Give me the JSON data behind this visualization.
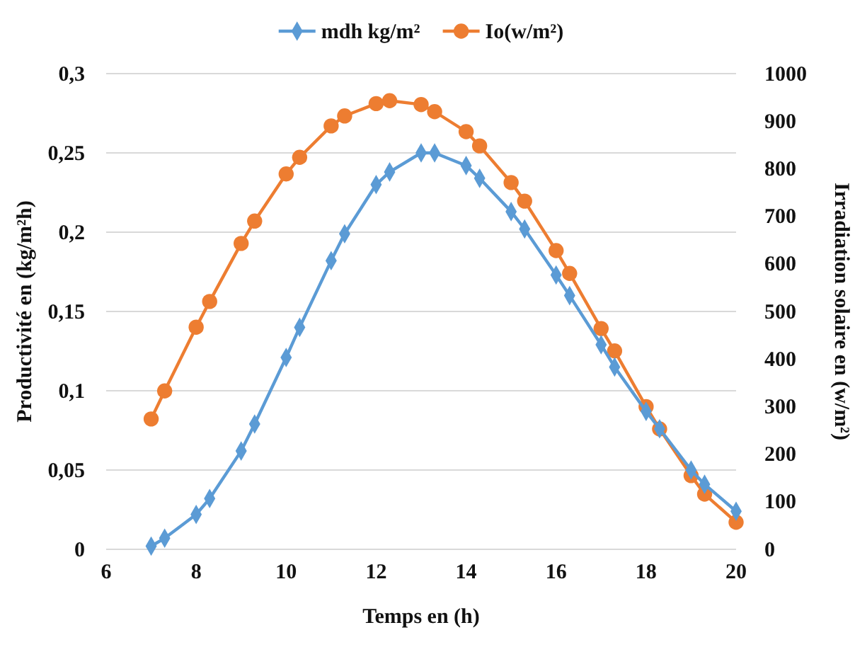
{
  "chart_data": {
    "type": "line",
    "xlabel": "Temps en (h)",
    "ylabel": "Productivité en (kg/m²h)",
    "y2label": "Irradiation solaire en (w/m²)",
    "x": [
      7,
      7.3,
      8,
      8.3,
      9,
      9.3,
      10,
      10.3,
      11,
      11.3,
      12,
      12.3,
      13,
      13.3,
      14,
      14.3,
      15,
      15.3,
      16,
      16.3,
      17,
      17.3,
      18,
      18.3,
      19,
      19.3,
      20
    ],
    "series": [
      {
        "name": "mdh kg/m²",
        "color": "#5b9bd5",
        "marker": "diamond",
        "values": [
          0.002,
          0.007,
          0.022,
          0.032,
          0.062,
          0.079,
          0.121,
          0.14,
          0.182,
          0.199,
          0.23,
          0.238,
          0.25,
          0.25,
          0.242,
          0.234,
          0.213,
          0.202,
          0.173,
          0.16,
          0.129,
          0.115,
          0.087,
          0.076,
          0.05,
          0.041,
          0.024
        ]
      },
      {
        "name": "Io(w/m²)",
        "color": "#ed7d31",
        "marker": "circle",
        "axis": "y2",
        "values": [
          274,
          333,
          467,
          521,
          643,
          690,
          789,
          824,
          890,
          911,
          937,
          943,
          935,
          920,
          878,
          848,
          771,
          732,
          628,
          580,
          464,
          417,
          300,
          253,
          155,
          116,
          57
        ]
      }
    ],
    "xlim": [
      6,
      20
    ],
    "xticks": [
      6,
      8,
      10,
      12,
      14,
      16,
      18,
      20
    ],
    "ylim": [
      0,
      0.3
    ],
    "yticks": [
      0,
      {
        "value": 0.05,
        "label": "0,05"
      },
      {
        "value": 0.1,
        "label": "0,1"
      },
      {
        "value": 0.15,
        "label": "0,15"
      },
      {
        "value": 0.2,
        "label": "0,2"
      },
      {
        "value": 0.25,
        "label": "0,25"
      },
      {
        "value": 0.3,
        "label": "0,3"
      }
    ],
    "y2lim": [
      0,
      1000
    ],
    "y2ticks": [
      0,
      100,
      200,
      300,
      400,
      500,
      600,
      700,
      800,
      900,
      1000
    ],
    "grid": "y",
    "legend": "top"
  }
}
